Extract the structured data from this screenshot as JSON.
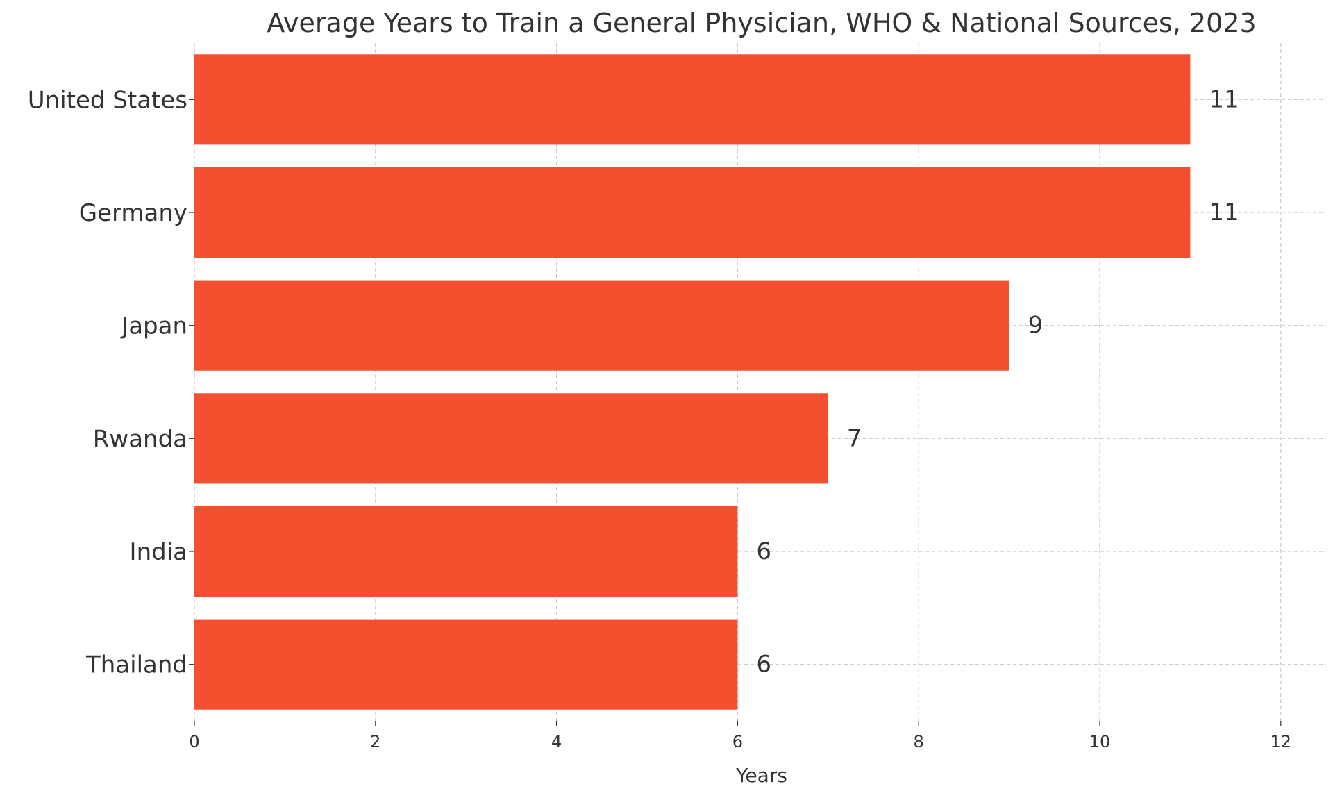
{
  "chart_data": {
    "type": "bar",
    "orientation": "horizontal",
    "title": "Average Years to Train a General Physician, WHO & National Sources, 2023",
    "xlabel": "Years",
    "ylabel": "",
    "categories": [
      "United States",
      "Germany",
      "Japan",
      "Rwanda",
      "India",
      "Thailand"
    ],
    "values": [
      11,
      11,
      9,
      7,
      6,
      6
    ],
    "data_labels": [
      "11",
      "11",
      "9",
      "7",
      "6",
      "6"
    ],
    "xlim": [
      0,
      12.5
    ],
    "xticks": [
      0,
      2,
      4,
      6,
      8,
      10,
      12
    ],
    "xtick_labels": [
      "0",
      "2",
      "4",
      "6",
      "8",
      "10",
      "12"
    ],
    "grid": true,
    "legend": "none",
    "colors": {
      "bar": "#f44f2f",
      "text": "#333333",
      "grid": "#c8c8c8"
    }
  }
}
